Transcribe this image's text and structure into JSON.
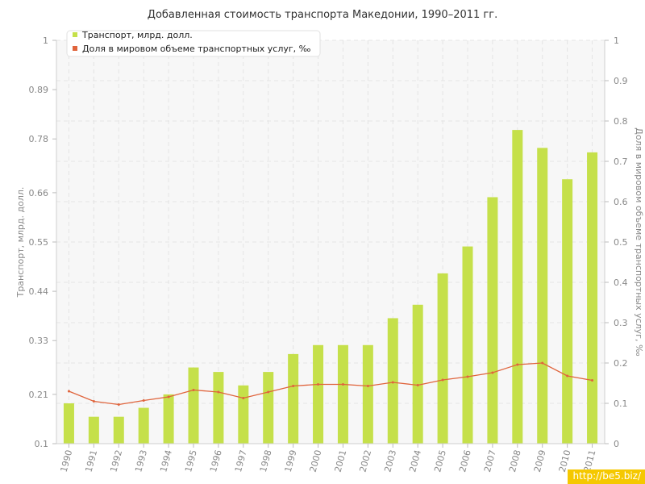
{
  "chart_data": {
    "type": "bar",
    "title": "Добавленная стоимость транспорта Македонии, 1990–2011 гг.",
    "categories": [
      "1990",
      "1991",
      "1992",
      "1993",
      "1994",
      "1995",
      "1996",
      "1997",
      "1998",
      "1999",
      "2000",
      "2001",
      "2002",
      "2003",
      "2004",
      "2005",
      "2006",
      "2007",
      "2008",
      "2009",
      "2010",
      "2011"
    ],
    "series": [
      {
        "name": "Транспорт, млрд. долл.",
        "type": "bar",
        "axis": "left",
        "color": "#c5e04a",
        "values": [
          0.19,
          0.16,
          0.16,
          0.18,
          0.21,
          0.27,
          0.26,
          0.23,
          0.26,
          0.3,
          0.32,
          0.32,
          0.32,
          0.38,
          0.41,
          0.48,
          0.54,
          0.65,
          0.8,
          0.76,
          0.69,
          0.75
        ]
      },
      {
        "name": "Доля в мировом объеме транспортных услуг, ‰",
        "type": "line",
        "axis": "right",
        "color": "#e0643c",
        "values": [
          0.13,
          0.105,
          0.097,
          0.107,
          0.116,
          0.133,
          0.128,
          0.113,
          0.128,
          0.143,
          0.147,
          0.147,
          0.143,
          0.152,
          0.145,
          0.158,
          0.166,
          0.176,
          0.196,
          0.2,
          0.168,
          0.157
        ]
      }
    ],
    "ylabel": "Транспорт, млрд. долл.",
    "y2label": "Доля в мировом объеме транспортных услуг, ‰",
    "ylim": [
      0.1,
      1
    ],
    "y2lim": [
      0,
      1
    ],
    "yticks": [
      "0.1",
      "0.21",
      "0.33",
      "0.44",
      "0.55",
      "0.66",
      "0.78",
      "0.89",
      "1"
    ],
    "y2ticks": [
      "0",
      "0.1",
      "0.2",
      "0.3",
      "0.4",
      "0.5",
      "0.6",
      "0.7",
      "0.8",
      "0.9",
      "1"
    ],
    "grid": true,
    "legend_position": "top-left"
  },
  "watermark": "http://be5.biz/",
  "colors": {
    "bar": "#c5e04a",
    "line": "#e0643c",
    "plot_bg": "#f7f7f7"
  }
}
